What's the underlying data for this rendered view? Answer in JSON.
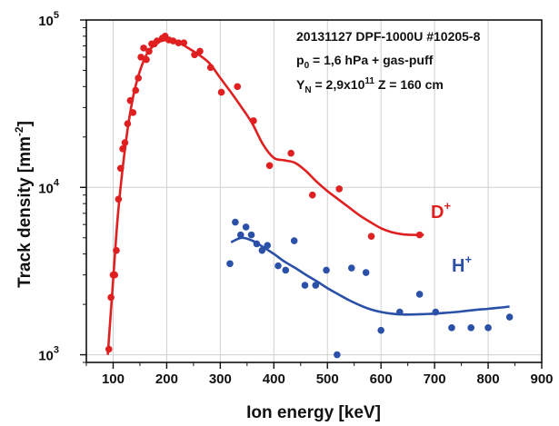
{
  "chart_data": {
    "type": "scatter",
    "xlabel": "Ion energy [keV]",
    "ylabel": "Track density [mm",
    "ylabel_sup": "-2",
    "ylabel_end": "]",
    "xlim": [
      50,
      900
    ],
    "ylim": [
      900,
      100000
    ],
    "yscale": "log",
    "xticks": [
      100,
      200,
      300,
      400,
      500,
      600,
      700,
      800,
      900
    ],
    "xtick_labels": [
      "100",
      "200",
      "300",
      "400",
      "500",
      "600",
      "700",
      "800",
      "900"
    ],
    "yticks": [
      1000,
      10000,
      100000
    ],
    "ytick_bases": [
      "10",
      "10",
      "10"
    ],
    "ytick_exps": [
      "3",
      "4",
      "5"
    ],
    "grid": true,
    "annotations": {
      "line1": "20131127 DPF-1000U #10205-8",
      "line2_prefix": "p",
      "line2_sub": "0",
      "line2_rest": " = 1,6 hPa + gas-puff",
      "line3_prefix": "Y",
      "line3_sub": "N",
      "line3_mid": " = 2,9x10",
      "line3_sup": "11",
      "line3_rest": " Z = 160 cm"
    },
    "series": [
      {
        "name": "D",
        "name_sup": "+",
        "color": "#e02020",
        "points": [
          [
            92,
            1080
          ],
          [
            96,
            2200
          ],
          [
            100,
            3000
          ],
          [
            103,
            3000
          ],
          [
            106,
            4200
          ],
          [
            110,
            8500
          ],
          [
            114,
            13000
          ],
          [
            118,
            17000
          ],
          [
            122,
            18500
          ],
          [
            127,
            24000
          ],
          [
            132,
            33000
          ],
          [
            137,
            28000
          ],
          [
            142,
            38000
          ],
          [
            147,
            45000
          ],
          [
            152,
            60000
          ],
          [
            157,
            68000
          ],
          [
            162,
            58000
          ],
          [
            167,
            65000
          ],
          [
            172,
            72000
          ],
          [
            177,
            72000
          ],
          [
            182,
            75000
          ],
          [
            192,
            78000
          ],
          [
            197,
            80000
          ],
          [
            204,
            76000
          ],
          [
            212,
            75000
          ],
          [
            222,
            73000
          ],
          [
            232,
            73000
          ],
          [
            252,
            62000
          ],
          [
            262,
            65000
          ],
          [
            282,
            52000
          ],
          [
            302,
            37000
          ],
          [
            332,
            40000
          ],
          [
            362,
            25000
          ],
          [
            392,
            13500
          ],
          [
            432,
            16000
          ],
          [
            472,
            9000
          ],
          [
            522,
            9800
          ],
          [
            582,
            5100
          ],
          [
            672,
            5200
          ]
        ],
        "fit": [
          [
            90,
            1000
          ],
          [
            100,
            2800
          ],
          [
            110,
            7500
          ],
          [
            125,
            20000
          ],
          [
            140,
            38000
          ],
          [
            160,
            60000
          ],
          [
            180,
            72000
          ],
          [
            200,
            76000
          ],
          [
            220,
            74000
          ],
          [
            240,
            68000
          ],
          [
            260,
            62000
          ],
          [
            280,
            55000
          ],
          [
            300,
            45000
          ],
          [
            320,
            37000
          ],
          [
            340,
            30000
          ],
          [
            360,
            24000
          ],
          [
            380,
            18000
          ],
          [
            400,
            15000
          ],
          [
            420,
            14500
          ],
          [
            440,
            14000
          ],
          [
            460,
            12500
          ],
          [
            480,
            10800
          ],
          [
            500,
            9500
          ],
          [
            520,
            8500
          ],
          [
            540,
            7600
          ],
          [
            560,
            6800
          ],
          [
            580,
            6200
          ],
          [
            600,
            5700
          ],
          [
            620,
            5400
          ],
          [
            640,
            5250
          ],
          [
            660,
            5200
          ],
          [
            680,
            5200
          ]
        ]
      },
      {
        "name": "H",
        "name_sup": "+",
        "color": "#2a50a8",
        "points": [
          [
            318,
            3500
          ],
          [
            328,
            6200
          ],
          [
            338,
            5200
          ],
          [
            348,
            5800
          ],
          [
            358,
            5200
          ],
          [
            368,
            4600
          ],
          [
            378,
            4200
          ],
          [
            388,
            4500
          ],
          [
            408,
            3400
          ],
          [
            422,
            3200
          ],
          [
            438,
            4800
          ],
          [
            458,
            2600
          ],
          [
            478,
            2600
          ],
          [
            498,
            3200
          ],
          [
            518,
            1000
          ],
          [
            545,
            3300
          ],
          [
            572,
            3100
          ],
          [
            600,
            1400
          ],
          [
            635,
            1800
          ],
          [
            672,
            2300
          ],
          [
            702,
            1800
          ],
          [
            732,
            1450
          ],
          [
            768,
            1450
          ],
          [
            800,
            1450
          ],
          [
            840,
            1680
          ]
        ],
        "fit": [
          [
            320,
            4700
          ],
          [
            340,
            5000
          ],
          [
            360,
            4800
          ],
          [
            380,
            4400
          ],
          [
            400,
            4000
          ],
          [
            420,
            3600
          ],
          [
            440,
            3300
          ],
          [
            460,
            3000
          ],
          [
            480,
            2750
          ],
          [
            500,
            2500
          ],
          [
            520,
            2300
          ],
          [
            540,
            2120
          ],
          [
            560,
            1980
          ],
          [
            580,
            1870
          ],
          [
            600,
            1800
          ],
          [
            620,
            1760
          ],
          [
            640,
            1740
          ],
          [
            660,
            1740
          ],
          [
            680,
            1750
          ],
          [
            700,
            1760
          ],
          [
            720,
            1780
          ],
          [
            740,
            1800
          ],
          [
            760,
            1830
          ],
          [
            780,
            1860
          ],
          [
            800,
            1880
          ],
          [
            820,
            1910
          ],
          [
            840,
            1940
          ]
        ]
      }
    ]
  }
}
